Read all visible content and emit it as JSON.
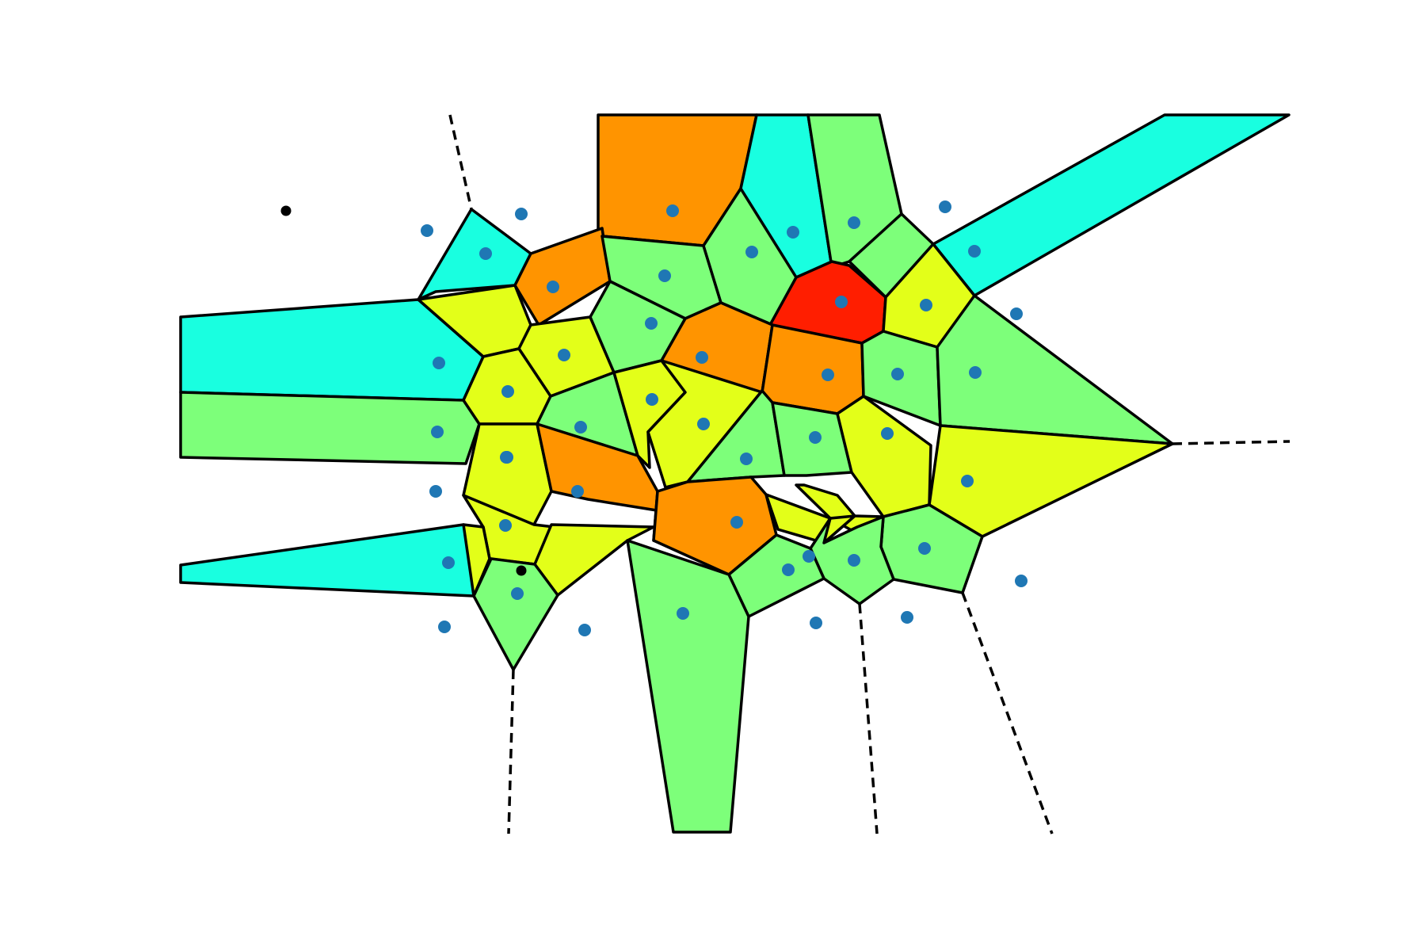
{
  "diagram": {
    "type": "voronoi",
    "colors": {
      "cyan": "#19ffe0",
      "green": "#7dff7a",
      "yellow": "#e3ff19",
      "orange": "#ff9400",
      "red": "#ff1e00",
      "point": "#1f77b4",
      "vertex": "#000000",
      "edge": "#000000"
    }
  }
}
